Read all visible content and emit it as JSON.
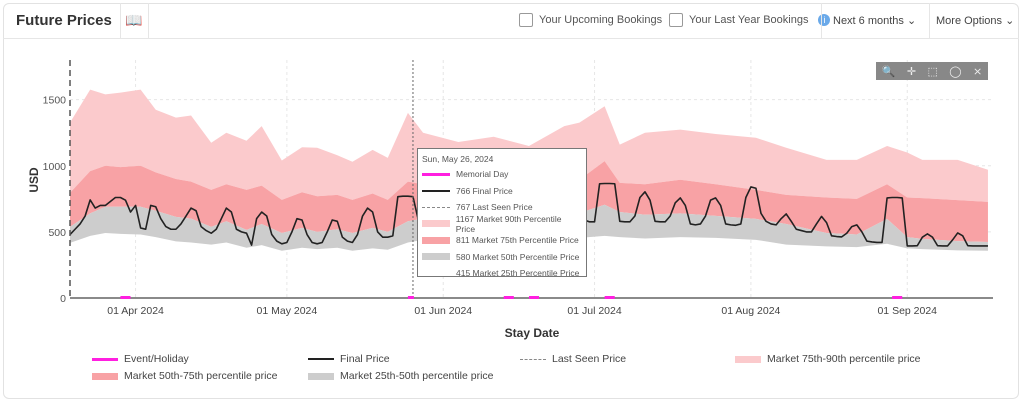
{
  "header": {
    "title": "Future Prices",
    "upcoming_label": "Your Upcoming Bookings",
    "last_year_label": "Your Last Year Bookings",
    "info_icon": "i",
    "period": "Next 6 months",
    "more_options": "More Options"
  },
  "tooltip": {
    "date": "Sun, May 26, 2024",
    "rows": [
      {
        "label": "Memorial Day",
        "kind": "event"
      },
      {
        "label": "766 Final Price",
        "kind": "final"
      },
      {
        "label": "767 Last Seen Price",
        "kind": "lastseen"
      },
      {
        "label": "1167 Market 90th Percentile Price",
        "kind": "p90"
      },
      {
        "label": "811 Market 75th Percentile Price",
        "kind": "p75"
      },
      {
        "label": "580 Market 50th Percentile Price",
        "kind": "p50"
      },
      {
        "label": "415 Market 25th Percentile Price",
        "kind": "p25"
      }
    ]
  },
  "colors": {
    "p90": "#fbcacc",
    "p75": "#f8a2a5",
    "p50": "#cdcdcd",
    "final": "#222222",
    "event": "#ff1fe0",
    "lastseen": "#888888"
  },
  "chart_data": {
    "type": "area",
    "xlabel": "Stay Date",
    "ylabel": "USD",
    "start_date": "2024-03-19",
    "x_unit": "days since start_date",
    "xlim": [
      0,
      183
    ],
    "ylim": [
      0,
      1800
    ],
    "yticks": [
      0,
      500,
      1000,
      1500
    ],
    "xticks": [
      {
        "day": 13,
        "label": "01 Apr 2024"
      },
      {
        "day": 43,
        "label": "01 May 2024"
      },
      {
        "day": 74,
        "label": "01 Jun 2024"
      },
      {
        "day": 104,
        "label": "01 Jul 2024"
      },
      {
        "day": 135,
        "label": "01 Aug 2024"
      },
      {
        "day": 166,
        "label": "01 Sep 2024"
      }
    ],
    "today_day": 0,
    "hover_day": 68,
    "events": [
      [
        10,
        12
      ],
      [
        67,
        68
      ],
      [
        86,
        88
      ],
      [
        91,
        93
      ],
      [
        106,
        108
      ],
      [
        163,
        165
      ]
    ],
    "percentiles": {
      "days": [
        0,
        4,
        7,
        10,
        14,
        17,
        21,
        24,
        28,
        31,
        35,
        38,
        42,
        46,
        49,
        53,
        56,
        60,
        63,
        67,
        70,
        77,
        84,
        91,
        98,
        101,
        106,
        109,
        114,
        121,
        128,
        136,
        142,
        150,
        156,
        162,
        166,
        169,
        176,
        182
      ],
      "p90": [
        1326,
        1576,
        1540,
        1553,
        1576,
        1424,
        1364,
        1380,
        1174,
        1250,
        1189,
        1300,
        1040,
        1140,
        1136,
        1080,
        1030,
        1120,
        1060,
        1400,
        1250,
        1180,
        1220,
        1150,
        1300,
        1326,
        1450,
        1160,
        1250,
        1273,
        1240,
        1212,
        1136,
        1045,
        1045,
        1150,
        1100,
        1045,
        1045,
        970
      ],
      "p75": [
        795,
        960,
        1000,
        990,
        1000,
        950,
        900,
        880,
        818,
        860,
        818,
        850,
        742,
        800,
        770,
        780,
        742,
        790,
        742,
        880,
        860,
        830,
        860,
        830,
        870,
        894,
        1035,
        871,
        860,
        894,
        860,
        818,
        780,
        760,
        750,
        860,
        760,
        755,
        740,
        727
      ],
      "p50": [
        538,
        640,
        690,
        690,
        690,
        660,
        614,
        600,
        538,
        580,
        515,
        560,
        492,
        530,
        500,
        520,
        492,
        530,
        500,
        580,
        600,
        600,
        620,
        610,
        640,
        643,
        705,
        650,
        630,
        640,
        621,
        598,
        560,
        492,
        480,
        598,
        460,
        447,
        430,
        424
      ],
      "p25": [
        417,
        470,
        492,
        485,
        480,
        460,
        428,
        420,
        404,
        420,
        380,
        400,
        357,
        380,
        370,
        380,
        357,
        375,
        365,
        420,
        440,
        450,
        460,
        450,
        460,
        455,
        470,
        460,
        450,
        460,
        455,
        440,
        404,
        390,
        385,
        410,
        375,
        370,
        360,
        357
      ]
    },
    "final_price": [
      [
        0,
        480
      ],
      [
        1,
        520
      ],
      [
        2,
        560
      ],
      [
        3,
        620
      ],
      [
        4,
        742
      ],
      [
        5,
        680
      ],
      [
        6,
        700
      ],
      [
        7,
        700
      ],
      [
        8,
        730
      ],
      [
        9,
        760
      ],
      [
        10,
        760
      ],
      [
        11,
        740
      ],
      [
        12,
        650
      ],
      [
        13,
        700
      ],
      [
        14,
        530
      ],
      [
        15,
        520
      ],
      [
        16,
        700
      ],
      [
        17,
        690
      ],
      [
        18,
        600
      ],
      [
        19,
        540
      ],
      [
        20,
        520
      ],
      [
        21,
        520
      ],
      [
        22,
        560
      ],
      [
        23,
        620
      ],
      [
        24,
        680
      ],
      [
        25,
        660
      ],
      [
        26,
        540
      ],
      [
        27,
        510
      ],
      [
        28,
        490
      ],
      [
        29,
        520
      ],
      [
        30,
        600
      ],
      [
        31,
        680
      ],
      [
        32,
        650
      ],
      [
        33,
        520
      ],
      [
        34,
        500
      ],
      [
        35,
        490
      ],
      [
        36,
        400
      ],
      [
        37,
        600
      ],
      [
        38,
        650
      ],
      [
        39,
        620
      ],
      [
        40,
        480
      ],
      [
        41,
        430
      ],
      [
        42,
        410
      ],
      [
        43,
        420
      ],
      [
        44,
        500
      ],
      [
        45,
        600
      ],
      [
        46,
        590
      ],
      [
        47,
        480
      ],
      [
        48,
        420
      ],
      [
        49,
        410
      ],
      [
        50,
        420
      ],
      [
        51,
        500
      ],
      [
        52,
        590
      ],
      [
        53,
        580
      ],
      [
        54,
        460
      ],
      [
        55,
        430
      ],
      [
        56,
        420
      ],
      [
        57,
        480
      ],
      [
        58,
        620
      ],
      [
        59,
        680
      ],
      [
        60,
        650
      ],
      [
        61,
        500
      ],
      [
        62,
        460
      ],
      [
        63,
        460
      ],
      [
        64,
        470
      ],
      [
        65,
        766
      ],
      [
        66,
        770
      ],
      [
        67,
        770
      ],
      [
        68,
        766
      ],
      [
        69,
        600
      ],
      [
        70,
        580
      ],
      [
        71,
        590
      ],
      [
        72,
        640
      ],
      [
        73,
        720
      ],
      [
        74,
        700
      ],
      [
        75,
        590
      ],
      [
        76,
        570
      ],
      [
        77,
        570
      ],
      [
        78,
        580
      ],
      [
        79,
        630
      ],
      [
        80,
        700
      ],
      [
        81,
        680
      ],
      [
        82,
        580
      ],
      [
        83,
        560
      ],
      [
        84,
        560
      ],
      [
        85,
        570
      ],
      [
        86,
        620
      ],
      [
        87,
        690
      ],
      [
        88,
        670
      ],
      [
        89,
        570
      ],
      [
        90,
        560
      ],
      [
        91,
        560
      ],
      [
        92,
        580
      ],
      [
        93,
        640
      ],
      [
        94,
        720
      ],
      [
        95,
        700
      ],
      [
        96,
        580
      ],
      [
        97,
        570
      ],
      [
        98,
        580
      ],
      [
        99,
        620
      ],
      [
        100,
        680
      ],
      [
        101,
        640
      ],
      [
        102,
        590
      ],
      [
        103,
        576
      ],
      [
        104,
        576
      ],
      [
        105,
        864
      ],
      [
        106,
        866
      ],
      [
        107,
        866
      ],
      [
        108,
        864
      ],
      [
        109,
        580
      ],
      [
        110,
        576
      ],
      [
        111,
        576
      ],
      [
        112,
        620
      ],
      [
        113,
        760
      ],
      [
        114,
        803
      ],
      [
        115,
        740
      ],
      [
        116,
        580
      ],
      [
        117,
        576
      ],
      [
        118,
        576
      ],
      [
        119,
        620
      ],
      [
        120,
        720
      ],
      [
        121,
        757
      ],
      [
        122,
        700
      ],
      [
        123,
        560
      ],
      [
        124,
        553
      ],
      [
        125,
        560
      ],
      [
        126,
        620
      ],
      [
        127,
        740
      ],
      [
        128,
        757
      ],
      [
        129,
        700
      ],
      [
        130,
        560
      ],
      [
        131,
        553
      ],
      [
        132,
        550
      ],
      [
        133,
        560
      ],
      [
        134,
        760
      ],
      [
        135,
        840
      ],
      [
        136,
        830
      ],
      [
        137,
        640
      ],
      [
        138,
        580
      ],
      [
        139,
        560
      ],
      [
        140,
        553
      ],
      [
        141,
        600
      ],
      [
        142,
        636
      ],
      [
        143,
        580
      ],
      [
        144,
        520
      ],
      [
        145,
        510
      ],
      [
        146,
        500
      ],
      [
        147,
        500
      ],
      [
        148,
        560
      ],
      [
        149,
        617
      ],
      [
        150,
        570
      ],
      [
        151,
        470
      ],
      [
        152,
        465
      ],
      [
        153,
        462
      ],
      [
        154,
        490
      ],
      [
        155,
        540
      ],
      [
        156,
        553
      ],
      [
        157,
        500
      ],
      [
        158,
        430
      ],
      [
        159,
        424
      ],
      [
        160,
        420
      ],
      [
        161,
        420
      ],
      [
        162,
        757
      ],
      [
        163,
        760
      ],
      [
        164,
        760
      ],
      [
        165,
        757
      ],
      [
        166,
        394
      ],
      [
        167,
        394
      ],
      [
        168,
        396
      ],
      [
        169,
        460
      ],
      [
        170,
        485
      ],
      [
        171,
        460
      ],
      [
        172,
        396
      ],
      [
        173,
        394
      ],
      [
        174,
        394
      ],
      [
        175,
        440
      ],
      [
        176,
        492
      ],
      [
        177,
        470
      ],
      [
        178,
        396
      ],
      [
        179,
        394
      ],
      [
        180,
        394
      ],
      [
        181,
        394
      ],
      [
        182,
        394
      ]
    ],
    "legend": [
      {
        "label": "Event/Holiday",
        "kind": "event"
      },
      {
        "label": "Final Price",
        "kind": "final"
      },
      {
        "label": "Last Seen Price",
        "kind": "lastseen"
      },
      {
        "label": "Market 75th-90th percentile price",
        "kind": "p90"
      },
      {
        "label": "Market 50th-75th percentile price",
        "kind": "p75"
      },
      {
        "label": "Market 25th-50th percentile price",
        "kind": "p50"
      }
    ]
  }
}
